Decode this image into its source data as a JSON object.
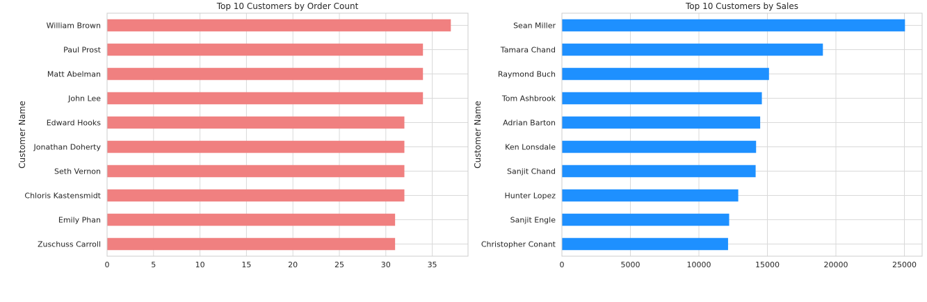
{
  "chart_data": [
    {
      "type": "bar",
      "orientation": "horizontal",
      "title": "Top 10 Customers by Order Count",
      "xlabel": "",
      "ylabel": "Customer Name",
      "categories": [
        "William Brown",
        "Paul Prost",
        "Matt Abelman",
        "John Lee",
        "Edward Hooks",
        "Jonathan Doherty",
        "Seth Vernon",
        "Chloris Kastensmidt",
        "Emily Phan",
        "Zuschuss Carroll"
      ],
      "values": [
        37,
        34,
        34,
        34,
        32,
        32,
        32,
        32,
        31,
        31
      ],
      "xlim": [
        0,
        38.85
      ],
      "xticks": [
        0,
        5,
        10,
        15,
        20,
        25,
        30,
        35
      ],
      "grid": true,
      "color": "#f08080"
    },
    {
      "type": "bar",
      "orientation": "horizontal",
      "title": "Top 10 Customers by Sales",
      "xlabel": "",
      "ylabel": "Customer Name",
      "categories": [
        "Sean Miller",
        "Tamara Chand",
        "Raymond Buch",
        "Tom Ashbrook",
        "Adrian Barton",
        "Ken Lonsdale",
        "Sanjit Chand",
        "Hunter Lopez",
        "Sanjit Engle",
        "Christopher Conant"
      ],
      "values": [
        25043,
        19052,
        15117,
        14596,
        14474,
        14175,
        14142,
        12873,
        12209,
        12129
      ],
      "xlim": [
        0,
        26295
      ],
      "xticks": [
        0,
        5000,
        10000,
        15000,
        20000,
        25000
      ],
      "grid": true,
      "color": "#1e90ff"
    }
  ]
}
